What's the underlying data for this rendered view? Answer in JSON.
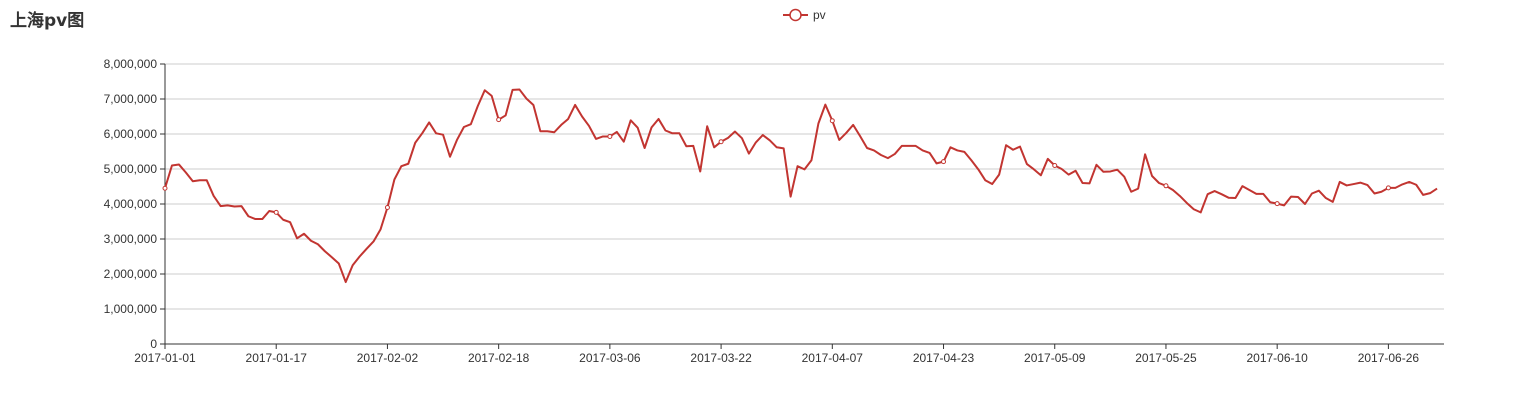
{
  "chart_data": {
    "type": "line",
    "title": "上海pv图",
    "legend": {
      "position": "top-center",
      "entries": [
        "pv"
      ]
    },
    "x_tick_labels": [
      "2017-01-01",
      "2017-01-17",
      "2017-02-02",
      "2017-02-18",
      "2017-03-06",
      "2017-03-22",
      "2017-04-07",
      "2017-04-23",
      "2017-05-09",
      "2017-05-25",
      "2017-06-10",
      "2017-06-26"
    ],
    "y_tick_labels": [
      "0",
      "1,000,000",
      "2,000,000",
      "3,000,000",
      "4,000,000",
      "5,000,000",
      "6,000,000",
      "7,000,000",
      "8,000,000"
    ],
    "ylim": [
      0,
      8000000
    ],
    "x_start": "2017-01-01",
    "x_end": "2017-07-04",
    "grid": {
      "horizontal": true,
      "vertical": false
    },
    "color": "#c23531",
    "series": [
      {
        "name": "pv",
        "values": [
          4450000,
          5100000,
          5130000,
          4900000,
          4650000,
          4680000,
          4680000,
          4230000,
          3940000,
          3960000,
          3930000,
          3940000,
          3650000,
          3570000,
          3570000,
          3800000,
          3760000,
          3550000,
          3480000,
          3020000,
          3150000,
          2950000,
          2850000,
          2650000,
          2480000,
          2300000,
          1770000,
          2250000,
          2500000,
          2720000,
          2930000,
          3270000,
          3900000,
          4700000,
          5080000,
          5150000,
          5750000,
          6020000,
          6330000,
          6020000,
          5980000,
          5350000,
          5830000,
          6200000,
          6280000,
          6800000,
          7250000,
          7090000,
          6410000,
          6530000,
          7260000,
          7270000,
          7010000,
          6830000,
          6080000,
          6080000,
          6050000,
          6260000,
          6430000,
          6830000,
          6500000,
          6230000,
          5860000,
          5930000,
          5930000,
          6060000,
          5780000,
          6390000,
          6180000,
          5600000,
          6190000,
          6430000,
          6100000,
          6020000,
          6020000,
          5650000,
          5660000,
          4930000,
          6220000,
          5620000,
          5780000,
          5890000,
          6070000,
          5880000,
          5440000,
          5760000,
          5970000,
          5820000,
          5620000,
          5590000,
          4210000,
          5080000,
          4990000,
          5250000,
          6300000,
          6840000,
          6380000,
          5830000,
          6030000,
          6260000,
          5940000,
          5600000,
          5530000,
          5400000,
          5310000,
          5430000,
          5660000,
          5660000,
          5660000,
          5530000,
          5460000,
          5160000,
          5210000,
          5620000,
          5530000,
          5490000,
          5250000,
          4990000,
          4680000,
          4570000,
          4840000,
          5680000,
          5550000,
          5640000,
          5140000,
          4990000,
          4820000,
          5290000,
          5100000,
          5000000,
          4840000,
          4950000,
          4600000,
          4590000,
          5120000,
          4920000,
          4930000,
          4980000,
          4780000,
          4350000,
          4440000,
          5420000,
          4800000,
          4600000,
          4520000,
          4400000,
          4230000,
          4030000,
          3850000,
          3760000,
          4280000,
          4370000,
          4280000,
          4180000,
          4170000,
          4510000,
          4400000,
          4290000,
          4290000,
          4050000,
          4010000,
          3960000,
          4210000,
          4200000,
          4000000,
          4300000,
          4380000,
          4170000,
          4060000,
          4630000,
          4530000,
          4570000,
          4610000,
          4540000,
          4300000,
          4350000,
          4460000,
          4460000,
          4560000,
          4630000,
          4550000,
          4260000,
          4310000,
          4440000
        ]
      }
    ]
  }
}
